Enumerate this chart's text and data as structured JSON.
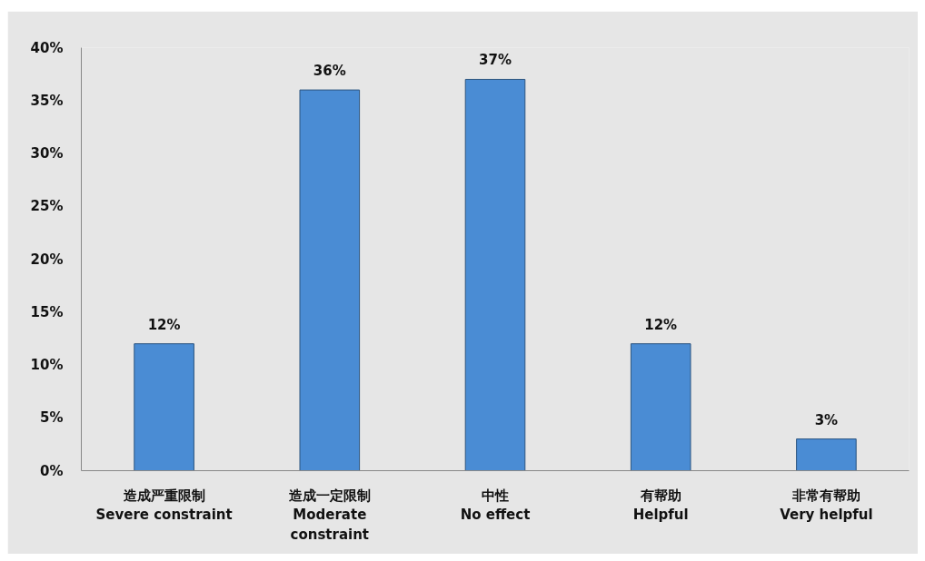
{
  "chart_data": {
    "type": "bar",
    "categories": [
      "造成严重限制\nSevere constraint",
      "造成一定限制\nModerate\nconstraint",
      "中性\nNo effect",
      "有帮助\nHelpful",
      "非常有帮助\nVery helpful"
    ],
    "values": [
      12,
      36,
      37,
      12,
      3
    ],
    "color": "#4a8cd4",
    "value_labels": [
      "12%",
      "36%",
      "37%",
      "12%",
      "3%"
    ],
    "ylim": [
      0,
      40
    ],
    "yticks": [
      {
        "value": 0,
        "label": "0%"
      },
      {
        "value": 5,
        "label": "5%"
      },
      {
        "value": 10,
        "label": "10%"
      },
      {
        "value": 15,
        "label": "15%"
      },
      {
        "value": 20,
        "label": "20%"
      },
      {
        "value": 25,
        "label": "25%"
      },
      {
        "value": 30,
        "label": "30%"
      },
      {
        "value": 35,
        "label": "35%"
      },
      {
        "value": 40,
        "label": "40%"
      }
    ]
  }
}
